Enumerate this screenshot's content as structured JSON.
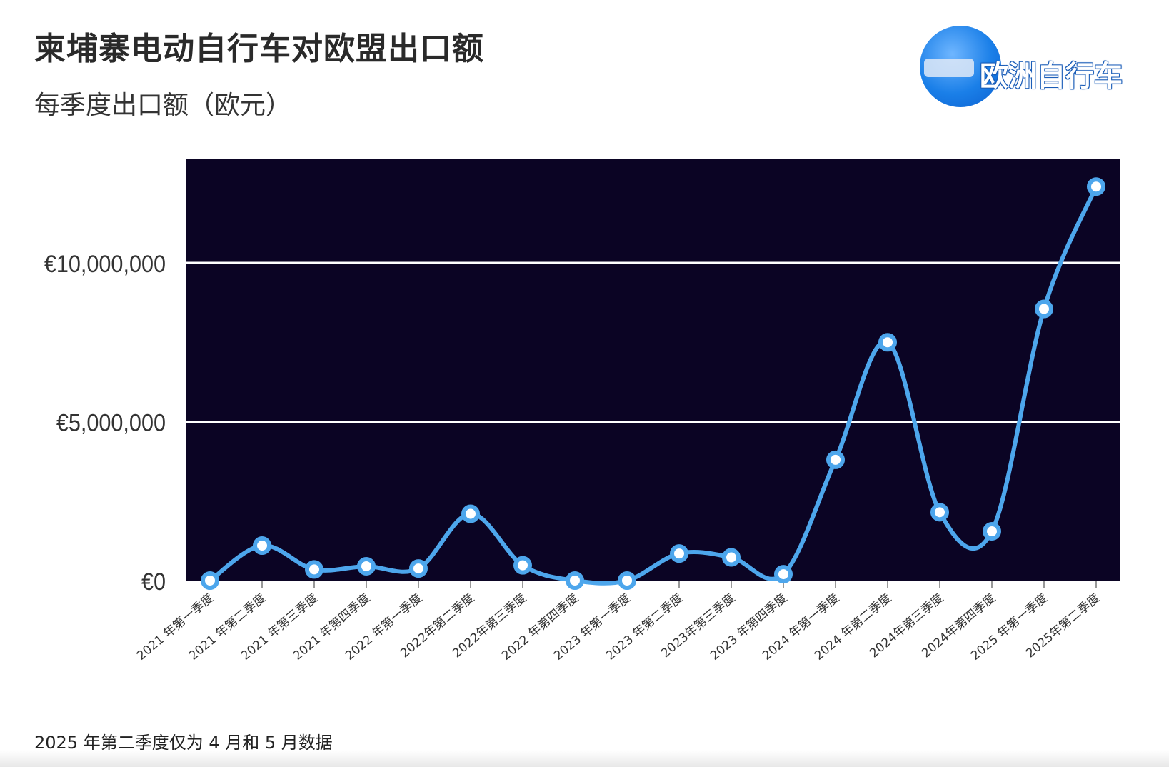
{
  "title": "柬埔寨电动自行车对欧盟出口额",
  "subtitle": "每季度出口额（欧元）",
  "footnote": "2025 年第二季度仅为 4 月和 5 月数据",
  "watermark": {
    "text": "欧洲自行车",
    "icon": "brand-logo-circle"
  },
  "colors": {
    "plot_bg": "#0b0424",
    "line": "#4da6ec",
    "grid": "#ffffff",
    "marker_fill": "#ffffff"
  },
  "chart_data": {
    "type": "line",
    "smooth": true,
    "title": "柬埔寨电动自行车对欧盟出口额",
    "subtitle": "每季度出口额（欧元）",
    "categories": [
      "2021 年第一季度",
      "2021 年第二季度",
      "2021 年第三季度",
      "2021 年第四季度",
      "2022 年第一季度",
      "2022年第二季度",
      "2022年第三季度",
      "2022 年第四季度",
      "2023 年第一季度",
      "2023 年第二季度",
      "2023年第三季度",
      "2023 年第四季度",
      "2024 年第一季度",
      "2024 年第二季度",
      "2024年第三季度",
      "2024年第四季度",
      "2025 年第一季度",
      "2025年第二季度"
    ],
    "values": [
      0,
      1100000,
      350000,
      450000,
      380000,
      2100000,
      480000,
      0,
      0,
      850000,
      730000,
      200000,
      3800000,
      7500000,
      2150000,
      1550000,
      8550000,
      12400000
    ],
    "yticks": [
      0,
      5000000,
      10000000
    ],
    "ytick_labels": [
      "€0",
      "€5,000,000",
      "€10,000,000"
    ],
    "ylim": [
      0,
      13200000
    ],
    "grid": "horizontal"
  }
}
